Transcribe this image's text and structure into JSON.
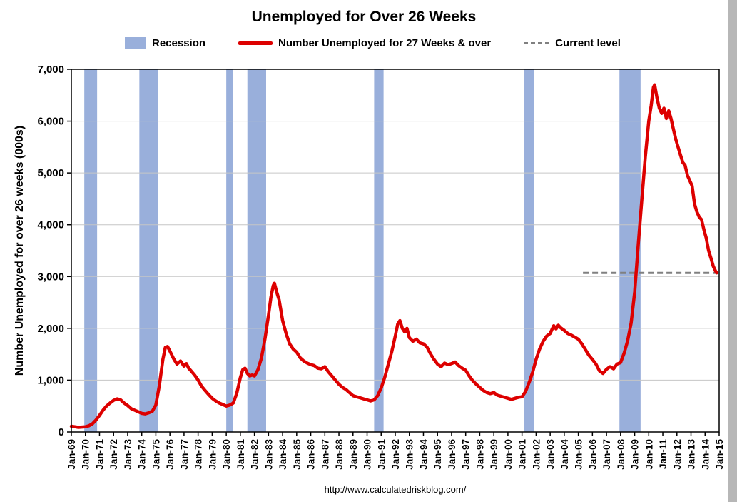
{
  "title": "Unemployed for Over 26 Weeks",
  "footer_url": "http://www.calculatedriskblog.com/",
  "y_axis_title": "Number Unemployed for over 26 weeks (000s)",
  "legend": {
    "recession_label": "Recession",
    "series_label": "Number Unemployed for 27 Weeks & over",
    "current_label": "Current level"
  },
  "colors": {
    "recession_band": "#99AFDB",
    "series_line": "#DD0000",
    "current_line": "#808080",
    "gridline": "#C6C6C6",
    "axis": "#000000"
  },
  "chart_data": {
    "type": "line",
    "title": "Unemployed for Over 26 Weeks",
    "xlabel": "",
    "ylabel": "Number Unemployed for over 26 weeks (000s)",
    "x_range": [
      1969,
      2015
    ],
    "y_range": [
      0,
      7000
    ],
    "grid": "horizontal",
    "legend_position": "top",
    "y_tick_labels": [
      "0",
      "1,000",
      "2,000",
      "3,000",
      "4,000",
      "5,000",
      "6,000",
      "7,000"
    ],
    "y_tick_values": [
      0,
      1000,
      2000,
      3000,
      4000,
      5000,
      6000,
      7000
    ],
    "x_tick_labels": [
      "Jan-69",
      "Jan-70",
      "Jan-71",
      "Jan-72",
      "Jan-73",
      "Jan-74",
      "Jan-75",
      "Jan-76",
      "Jan-77",
      "Jan-78",
      "Jan-79",
      "Jan-80",
      "Jan-81",
      "Jan-82",
      "Jan-83",
      "Jan-84",
      "Jan-85",
      "Jan-86",
      "Jan-87",
      "Jan-88",
      "Jan-89",
      "Jan-90",
      "Jan-91",
      "Jan-92",
      "Jan-93",
      "Jan-94",
      "Jan-95",
      "Jan-96",
      "Jan-97",
      "Jan-98",
      "Jan-99",
      "Jan-00",
      "Jan-01",
      "Jan-02",
      "Jan-03",
      "Jan-04",
      "Jan-05",
      "Jan-06",
      "Jan-07",
      "Jan-08",
      "Jan-09",
      "Jan-10",
      "Jan-11",
      "Jan-12",
      "Jan-13",
      "Jan-14",
      "Jan-15"
    ],
    "recessions": [
      [
        1969.92,
        1970.83
      ],
      [
        1973.83,
        1975.17
      ],
      [
        1980.0,
        1980.5
      ],
      [
        1981.5,
        1982.83
      ],
      [
        1990.5,
        1991.17
      ],
      [
        2001.17,
        2001.83
      ],
      [
        2007.92,
        2009.42
      ]
    ],
    "current_level": {
      "value": 3070,
      "x_start": 2005.33,
      "x_end": 2015
    },
    "series": [
      {
        "name": "Number Unemployed for 27 Weeks & over",
        "points": [
          [
            1969.0,
            110
          ],
          [
            1969.25,
            100
          ],
          [
            1969.5,
            90
          ],
          [
            1969.75,
            95
          ],
          [
            1970.0,
            100
          ],
          [
            1970.25,
            120
          ],
          [
            1970.5,
            160
          ],
          [
            1970.75,
            230
          ],
          [
            1971.0,
            320
          ],
          [
            1971.25,
            420
          ],
          [
            1971.5,
            500
          ],
          [
            1971.75,
            560
          ],
          [
            1972.0,
            610
          ],
          [
            1972.25,
            640
          ],
          [
            1972.5,
            620
          ],
          [
            1972.75,
            560
          ],
          [
            1973.0,
            510
          ],
          [
            1973.25,
            450
          ],
          [
            1973.5,
            420
          ],
          [
            1973.75,
            390
          ],
          [
            1974.0,
            360
          ],
          [
            1974.25,
            350
          ],
          [
            1974.5,
            370
          ],
          [
            1974.75,
            400
          ],
          [
            1975.0,
            520
          ],
          [
            1975.25,
            900
          ],
          [
            1975.5,
            1400
          ],
          [
            1975.67,
            1630
          ],
          [
            1975.83,
            1650
          ],
          [
            1976.0,
            1560
          ],
          [
            1976.25,
            1420
          ],
          [
            1976.5,
            1310
          ],
          [
            1976.75,
            1370
          ],
          [
            1977.0,
            1270
          ],
          [
            1977.17,
            1320
          ],
          [
            1977.33,
            1230
          ],
          [
            1977.5,
            1180
          ],
          [
            1977.75,
            1100
          ],
          [
            1978.0,
            1000
          ],
          [
            1978.25,
            880
          ],
          [
            1978.5,
            800
          ],
          [
            1978.75,
            720
          ],
          [
            1979.0,
            650
          ],
          [
            1979.25,
            600
          ],
          [
            1979.5,
            560
          ],
          [
            1979.75,
            530
          ],
          [
            1980.0,
            500
          ],
          [
            1980.25,
            520
          ],
          [
            1980.5,
            560
          ],
          [
            1980.75,
            750
          ],
          [
            1981.0,
            1050
          ],
          [
            1981.17,
            1200
          ],
          [
            1981.33,
            1230
          ],
          [
            1981.5,
            1130
          ],
          [
            1981.67,
            1080
          ],
          [
            1981.83,
            1100
          ],
          [
            1982.0,
            1080
          ],
          [
            1982.25,
            1200
          ],
          [
            1982.5,
            1430
          ],
          [
            1982.75,
            1800
          ],
          [
            1983.0,
            2250
          ],
          [
            1983.17,
            2600
          ],
          [
            1983.33,
            2820
          ],
          [
            1983.42,
            2870
          ],
          [
            1983.58,
            2700
          ],
          [
            1983.75,
            2550
          ],
          [
            1984.0,
            2150
          ],
          [
            1984.25,
            1900
          ],
          [
            1984.5,
            1700
          ],
          [
            1984.75,
            1600
          ],
          [
            1985.0,
            1540
          ],
          [
            1985.25,
            1430
          ],
          [
            1985.5,
            1370
          ],
          [
            1985.75,
            1330
          ],
          [
            1986.0,
            1300
          ],
          [
            1986.25,
            1280
          ],
          [
            1986.5,
            1230
          ],
          [
            1986.75,
            1220
          ],
          [
            1987.0,
            1260
          ],
          [
            1987.25,
            1160
          ],
          [
            1987.5,
            1080
          ],
          [
            1987.75,
            1000
          ],
          [
            1988.0,
            920
          ],
          [
            1988.25,
            860
          ],
          [
            1988.5,
            820
          ],
          [
            1988.75,
            760
          ],
          [
            1989.0,
            700
          ],
          [
            1989.25,
            680
          ],
          [
            1989.5,
            660
          ],
          [
            1989.75,
            640
          ],
          [
            1990.0,
            620
          ],
          [
            1990.25,
            600
          ],
          [
            1990.5,
            620
          ],
          [
            1990.75,
            700
          ],
          [
            1991.0,
            850
          ],
          [
            1991.25,
            1050
          ],
          [
            1991.5,
            1300
          ],
          [
            1991.75,
            1550
          ],
          [
            1992.0,
            1850
          ],
          [
            1992.17,
            2080
          ],
          [
            1992.33,
            2150
          ],
          [
            1992.5,
            2000
          ],
          [
            1992.67,
            1930
          ],
          [
            1992.83,
            2000
          ],
          [
            1993.0,
            1820
          ],
          [
            1993.25,
            1750
          ],
          [
            1993.5,
            1790
          ],
          [
            1993.75,
            1720
          ],
          [
            1994.0,
            1700
          ],
          [
            1994.25,
            1640
          ],
          [
            1994.5,
            1510
          ],
          [
            1994.75,
            1400
          ],
          [
            1995.0,
            1310
          ],
          [
            1995.25,
            1260
          ],
          [
            1995.5,
            1330
          ],
          [
            1995.75,
            1300
          ],
          [
            1996.0,
            1320
          ],
          [
            1996.25,
            1350
          ],
          [
            1996.5,
            1280
          ],
          [
            1996.75,
            1230
          ],
          [
            1997.0,
            1190
          ],
          [
            1997.25,
            1080
          ],
          [
            1997.5,
            990
          ],
          [
            1997.75,
            920
          ],
          [
            1998.0,
            860
          ],
          [
            1998.25,
            800
          ],
          [
            1998.5,
            760
          ],
          [
            1998.75,
            740
          ],
          [
            1999.0,
            760
          ],
          [
            1999.25,
            710
          ],
          [
            1999.5,
            690
          ],
          [
            1999.75,
            670
          ],
          [
            2000.0,
            650
          ],
          [
            2000.25,
            630
          ],
          [
            2000.5,
            650
          ],
          [
            2000.75,
            670
          ],
          [
            2001.0,
            680
          ],
          [
            2001.25,
            780
          ],
          [
            2001.5,
            950
          ],
          [
            2001.75,
            1150
          ],
          [
            2002.0,
            1400
          ],
          [
            2002.25,
            1600
          ],
          [
            2002.5,
            1750
          ],
          [
            2002.75,
            1850
          ],
          [
            2003.0,
            1900
          ],
          [
            2003.25,
            2050
          ],
          [
            2003.42,
            1990
          ],
          [
            2003.58,
            2060
          ],
          [
            2003.75,
            2010
          ],
          [
            2004.0,
            1960
          ],
          [
            2004.25,
            1900
          ],
          [
            2004.5,
            1870
          ],
          [
            2004.75,
            1830
          ],
          [
            2005.0,
            1790
          ],
          [
            2005.25,
            1700
          ],
          [
            2005.5,
            1590
          ],
          [
            2005.75,
            1480
          ],
          [
            2006.0,
            1400
          ],
          [
            2006.25,
            1310
          ],
          [
            2006.5,
            1180
          ],
          [
            2006.75,
            1130
          ],
          [
            2007.0,
            1210
          ],
          [
            2007.25,
            1260
          ],
          [
            2007.5,
            1220
          ],
          [
            2007.75,
            1310
          ],
          [
            2008.0,
            1340
          ],
          [
            2008.25,
            1520
          ],
          [
            2008.5,
            1760
          ],
          [
            2008.75,
            2100
          ],
          [
            2009.0,
            2700
          ],
          [
            2009.25,
            3600
          ],
          [
            2009.5,
            4450
          ],
          [
            2009.75,
            5300
          ],
          [
            2010.0,
            6000
          ],
          [
            2010.17,
            6300
          ],
          [
            2010.33,
            6650
          ],
          [
            2010.42,
            6700
          ],
          [
            2010.58,
            6450
          ],
          [
            2010.75,
            6250
          ],
          [
            2010.92,
            6150
          ],
          [
            2011.08,
            6250
          ],
          [
            2011.25,
            6050
          ],
          [
            2011.42,
            6200
          ],
          [
            2011.58,
            6050
          ],
          [
            2011.75,
            5850
          ],
          [
            2011.92,
            5650
          ],
          [
            2012.08,
            5500
          ],
          [
            2012.25,
            5350
          ],
          [
            2012.42,
            5200
          ],
          [
            2012.58,
            5150
          ],
          [
            2012.75,
            4950
          ],
          [
            2012.92,
            4850
          ],
          [
            2013.08,
            4750
          ],
          [
            2013.25,
            4400
          ],
          [
            2013.42,
            4250
          ],
          [
            2013.58,
            4150
          ],
          [
            2013.75,
            4100
          ],
          [
            2013.92,
            3900
          ],
          [
            2014.08,
            3750
          ],
          [
            2014.25,
            3500
          ],
          [
            2014.42,
            3350
          ],
          [
            2014.58,
            3200
          ],
          [
            2014.75,
            3100
          ],
          [
            2014.83,
            3070
          ]
        ]
      }
    ]
  }
}
